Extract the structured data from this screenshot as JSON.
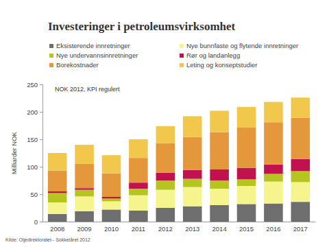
{
  "chart_data": {
    "type": "bar",
    "title": "Investeringer i petroleumsvirksomhet",
    "annotations": [
      "NOK 2012, KPI regulert"
    ],
    "source": "Kilde: Oljedirektoratet - Sokkelåret 2012",
    "y_label": "Milliarder NOK",
    "categories": [
      "2008",
      "2009",
      "2010",
      "2011",
      "2012",
      "2013",
      "2014",
      "2015",
      "2016",
      "2017"
    ],
    "series": [
      {
        "name": "Eksisterende innretninger",
        "color": "#6e6e6e",
        "values": [
          14,
          19,
          22,
          20,
          25,
          28,
          30,
          32,
          33,
          36
        ]
      },
      {
        "name": "Nye bunnfaste og flytende innretninger",
        "color": "#f6f48c",
        "values": [
          21,
          27,
          15,
          28,
          33,
          35,
          30,
          33,
          40,
          36
        ]
      },
      {
        "name": "Nye undervannsinnretninger",
        "color": "#b5c41f",
        "values": [
          17,
          12,
          5,
          12,
          17,
          15,
          15,
          12,
          14,
          20
        ]
      },
      {
        "name": "Rør og landanlegg",
        "color": "#c0124e",
        "values": [
          3,
          3,
          3,
          11,
          14,
          16,
          20,
          21,
          17,
          22
        ]
      },
      {
        "name": "Borekostnader",
        "color": "#e5973c",
        "values": [
          38,
          44,
          43,
          45,
          54,
          60,
          68,
          74,
          77,
          75
        ]
      },
      {
        "name": "Leting og konseptstudier",
        "color": "#f2c84c",
        "values": [
          32,
          35,
          33,
          34,
          31,
          38,
          39,
          37,
          37,
          37
        ]
      }
    ],
    "stacked": true,
    "legend": "top",
    "grid": false,
    "ylim": [
      0,
      250
    ],
    "yticks": [
      0,
      50,
      100,
      150,
      200,
      250
    ]
  }
}
